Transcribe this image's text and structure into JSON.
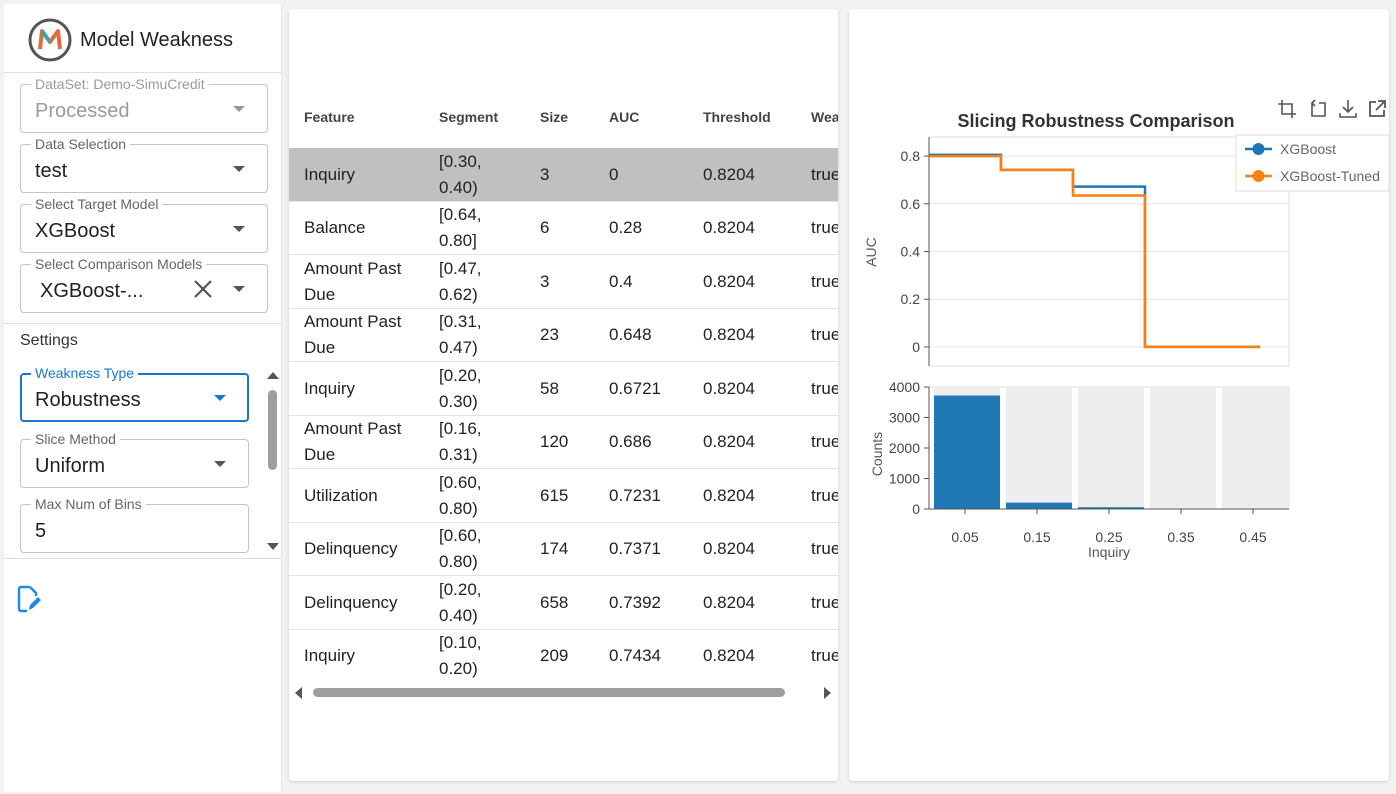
{
  "app": {
    "title": "Model Weakness"
  },
  "sidebar": {
    "dataset": {
      "label": "DataSet: Demo-SimuCredit",
      "value": "Processed"
    },
    "data_selection": {
      "label": "Data Selection",
      "value": "test"
    },
    "target_model": {
      "label": "Select Target Model",
      "value": "XGBoost"
    },
    "comparison_models": {
      "label": "Select Comparison Models",
      "value": "XGBoost-..."
    },
    "settings_label": "Settings",
    "weakness_type": {
      "label": "Weakness Type",
      "value": "Robustness"
    },
    "slice_method": {
      "label": "Slice Method",
      "value": "Uniform"
    },
    "max_bins": {
      "label": "Max Num of Bins",
      "value": "5"
    }
  },
  "table": {
    "columns": [
      "Feature",
      "Segment",
      "Size",
      "AUC",
      "Threshold",
      "Wea"
    ],
    "rows": [
      {
        "feature": "Inquiry",
        "segment": "[0.30, 0.40)",
        "size": "3",
        "auc": "0",
        "threshold": "0.8204",
        "weak": "true"
      },
      {
        "feature": "Balance",
        "segment": "[0.64, 0.80]",
        "size": "6",
        "auc": "0.28",
        "threshold": "0.8204",
        "weak": "true"
      },
      {
        "feature": "Amount Past Due",
        "segment": "[0.47, 0.62)",
        "size": "3",
        "auc": "0.4",
        "threshold": "0.8204",
        "weak": "true"
      },
      {
        "feature": "Amount Past Due",
        "segment": "[0.31, 0.47)",
        "size": "23",
        "auc": "0.648",
        "threshold": "0.8204",
        "weak": "true"
      },
      {
        "feature": "Inquiry",
        "segment": "[0.20, 0.30)",
        "size": "58",
        "auc": "0.6721",
        "threshold": "0.8204",
        "weak": "true"
      },
      {
        "feature": "Amount Past Due",
        "segment": "[0.16, 0.31)",
        "size": "120",
        "auc": "0.686",
        "threshold": "0.8204",
        "weak": "true"
      },
      {
        "feature": "Utilization",
        "segment": "[0.60, 0.80)",
        "size": "615",
        "auc": "0.7231",
        "threshold": "0.8204",
        "weak": "true"
      },
      {
        "feature": "Delinquency",
        "segment": "[0.60, 0.80)",
        "size": "174",
        "auc": "0.7371",
        "threshold": "0.8204",
        "weak": "true"
      },
      {
        "feature": "Delinquency",
        "segment": "[0.20, 0.40)",
        "size": "658",
        "auc": "0.7392",
        "threshold": "0.8204",
        "weak": "true"
      },
      {
        "feature": "Inquiry",
        "segment": "[0.10, 0.20)",
        "size": "209",
        "auc": "0.7434",
        "threshold": "0.8204",
        "weak": "true"
      }
    ]
  },
  "chart_data": [
    {
      "type": "line",
      "title": "Slicing Robustness Comparison",
      "xlabel": "",
      "ylabel": "AUC",
      "ylim": [
        -0.08,
        0.88
      ],
      "yticks": [
        "0",
        "0.2",
        "0.4",
        "0.6",
        "0.8"
      ],
      "xlim": [
        0,
        0.5
      ],
      "step": true,
      "legend": "top-right",
      "series": [
        {
          "name": "XGBoost",
          "color": "#1f77b4",
          "x": [
            0.0,
            0.1,
            0.2,
            0.3,
            0.4
          ],
          "values": [
            0.805,
            0.742,
            0.672,
            0.0,
            0.0
          ]
        },
        {
          "name": "XGBoost-Tuned",
          "color": "#ff7f0e",
          "x": [
            0.0,
            0.1,
            0.2,
            0.3,
            0.4
          ],
          "values": [
            0.8,
            0.742,
            0.635,
            0.0,
            0.0
          ]
        }
      ]
    },
    {
      "type": "bar",
      "title": "",
      "xlabel": "Inquiry",
      "ylabel": "Counts",
      "ylim": [
        0,
        4000
      ],
      "yticks": [
        "0",
        "1000",
        "2000",
        "3000",
        "4000"
      ],
      "categories": [
        "0.05",
        "0.15",
        "0.25",
        "0.35",
        "0.45"
      ],
      "values": [
        3720,
        209,
        58,
        3,
        0
      ],
      "color": "#1f77b4"
    }
  ]
}
